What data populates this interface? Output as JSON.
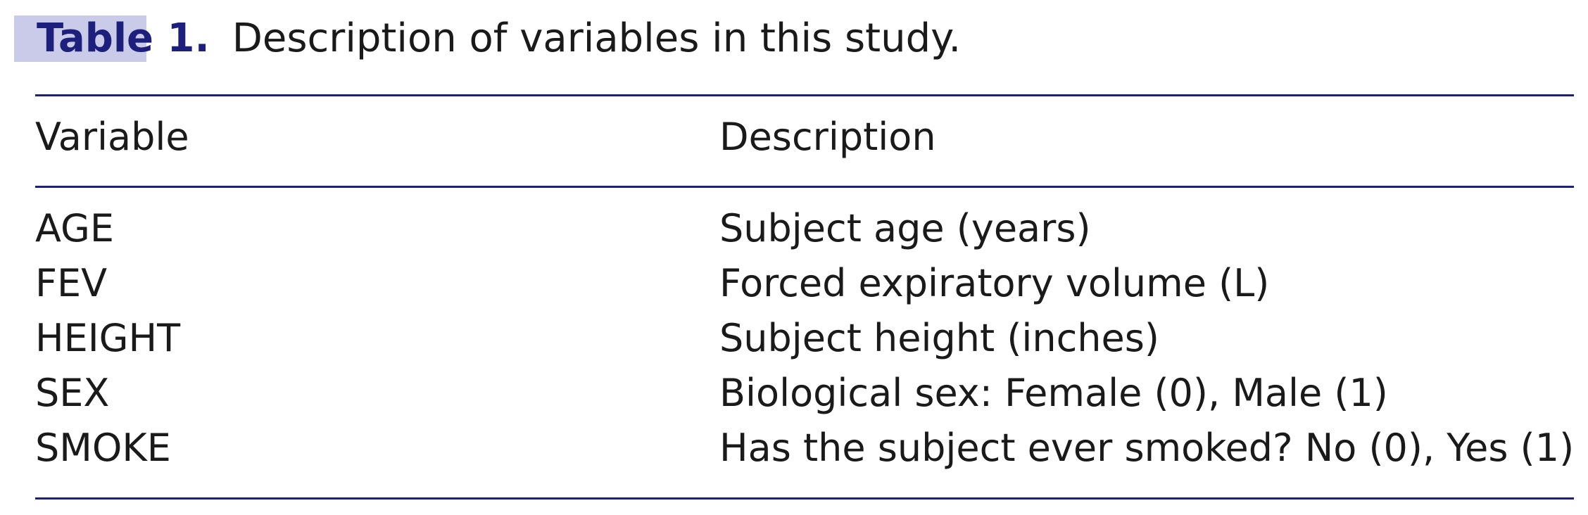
{
  "caption": {
    "label": "Table 1.",
    "text": "Description of variables in this study."
  },
  "table": {
    "headers": [
      "Variable",
      "Description"
    ],
    "rows": [
      [
        "AGE",
        "Subject age (years)"
      ],
      [
        "FEV",
        "Forced expiratory volume (L)"
      ],
      [
        "HEIGHT",
        "Subject height (inches)"
      ],
      [
        "SEX",
        "Biological sex: Female (0), Male (1)"
      ],
      [
        "SMOKE",
        "Has the subject ever smoked? No (0), Yes (1)"
      ]
    ]
  },
  "colors": {
    "accent": "#1d1f7c",
    "highlight": "#c9cbe9",
    "text": "#1a1a1a"
  }
}
